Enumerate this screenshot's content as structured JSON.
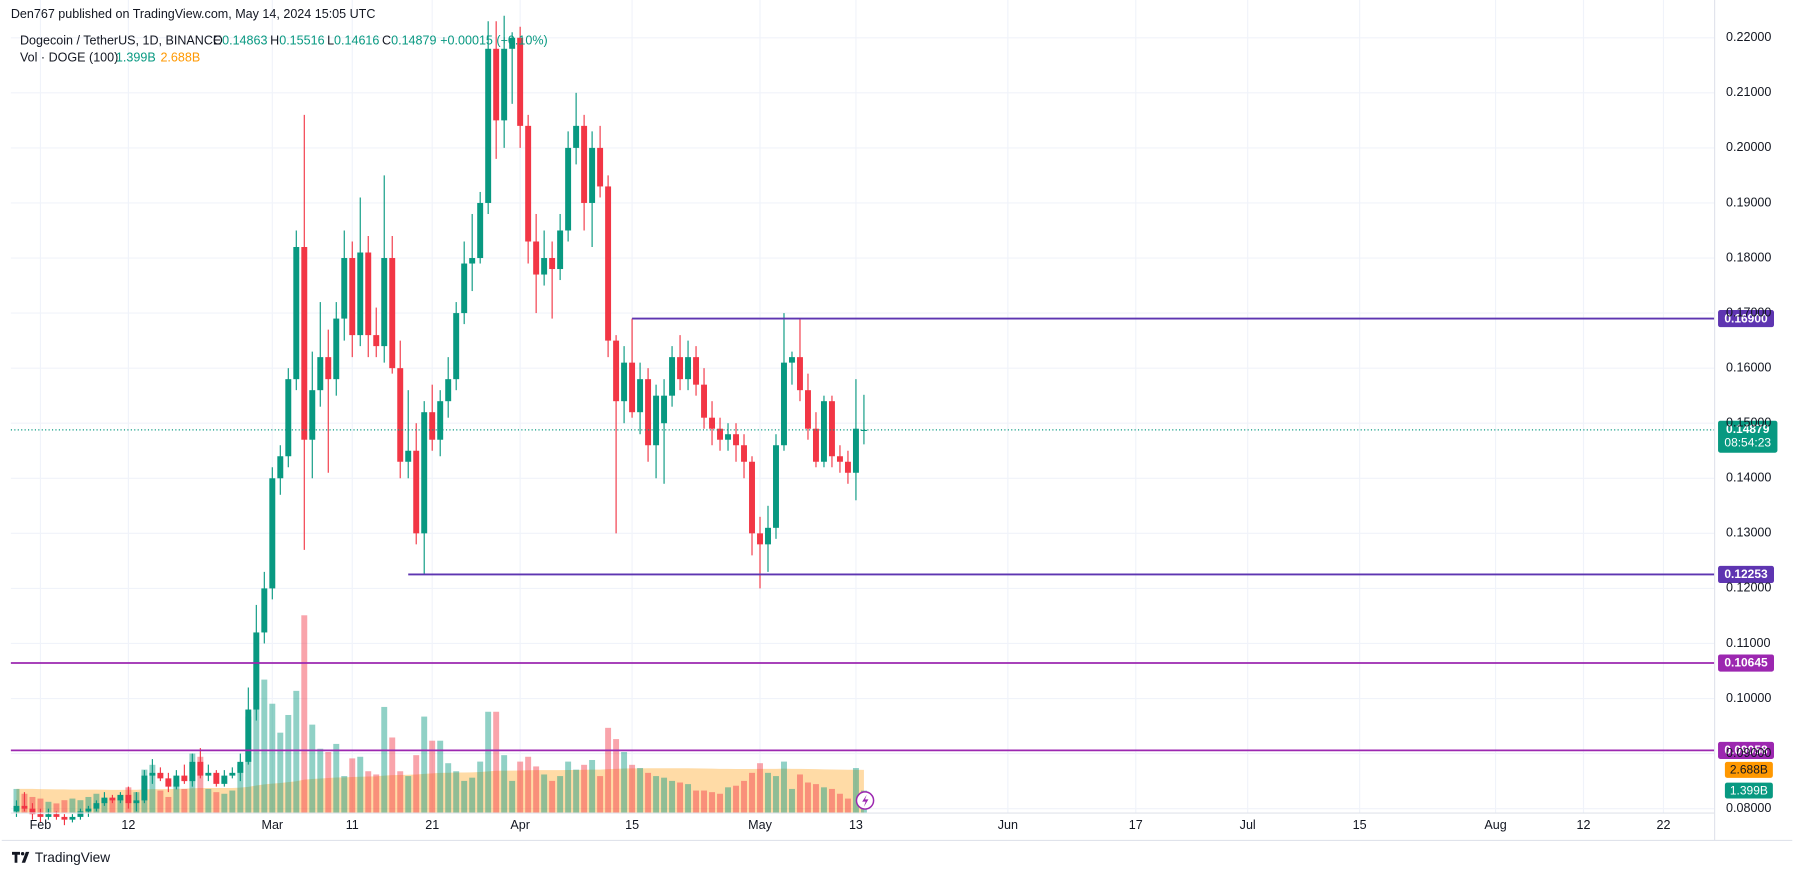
{
  "header": {
    "published": "Den767 published on TradingView.com, May 14, 2024 15:05 UTC",
    "symbol": "Dogecoin / TetherUS, 1D, BINANCE",
    "o": "O",
    "h": "H",
    "l": "L",
    "c": "C",
    "change": "+0.00015 (+0.10%)",
    "vol_title": "Vol · DOGE (100)",
    "countdown": "08:54:23",
    "footer": "TradingView"
  },
  "chart_data": {
    "type": "candlestick",
    "x": [
      29,
      30,
      31,
      32,
      33,
      34,
      35,
      36,
      37,
      38,
      39,
      40,
      41,
      42,
      43,
      44,
      45,
      46,
      47,
      48,
      49,
      50,
      51,
      52,
      53,
      54,
      55,
      56,
      57,
      58,
      59,
      60,
      61,
      62,
      63,
      64,
      65,
      66,
      67,
      68,
      69,
      70,
      71,
      72,
      73,
      74,
      75,
      76,
      77,
      78,
      79,
      80,
      81,
      82,
      83,
      84,
      85,
      86,
      87,
      88,
      89,
      90,
      91,
      92,
      93,
      94,
      95,
      96,
      97,
      98,
      99,
      100,
      101,
      102,
      103,
      104,
      105,
      106,
      107,
      108,
      109,
      110,
      111,
      112,
      113,
      114,
      115,
      116,
      117,
      118,
      119,
      120,
      121,
      122,
      123,
      124,
      125,
      126,
      127,
      128,
      129,
      130,
      131,
      132,
      133,
      134,
      135
    ],
    "ohlc": [
      [
        0.0795,
        0.0815,
        0.0785,
        0.0805
      ],
      [
        0.0805,
        0.083,
        0.0795,
        0.08
      ],
      [
        0.08,
        0.081,
        0.078,
        0.079
      ],
      [
        0.079,
        0.08,
        0.0775,
        0.0785
      ],
      [
        0.0785,
        0.08,
        0.078,
        0.079
      ],
      [
        0.079,
        0.0795,
        0.078,
        0.0785
      ],
      [
        0.0785,
        0.079,
        0.077,
        0.078
      ],
      [
        0.078,
        0.079,
        0.0775,
        0.0785
      ],
      [
        0.0785,
        0.08,
        0.078,
        0.0795
      ],
      [
        0.0795,
        0.0805,
        0.0785,
        0.08
      ],
      [
        0.08,
        0.0815,
        0.0795,
        0.081
      ],
      [
        0.081,
        0.083,
        0.0805,
        0.082
      ],
      [
        0.082,
        0.0825,
        0.081,
        0.0815
      ],
      [
        0.0815,
        0.083,
        0.081,
        0.0825
      ],
      [
        0.0825,
        0.084,
        0.08,
        0.081
      ],
      [
        0.081,
        0.083,
        0.0795,
        0.0815
      ],
      [
        0.0815,
        0.087,
        0.081,
        0.086
      ],
      [
        0.086,
        0.089,
        0.0845,
        0.0865
      ],
      [
        0.0865,
        0.0875,
        0.085,
        0.0855
      ],
      [
        0.0855,
        0.0865,
        0.083,
        0.084
      ],
      [
        0.084,
        0.087,
        0.0835,
        0.086
      ],
      [
        0.086,
        0.088,
        0.0845,
        0.085
      ],
      [
        0.085,
        0.09,
        0.084,
        0.0885
      ],
      [
        0.0885,
        0.091,
        0.0855,
        0.086
      ],
      [
        0.086,
        0.088,
        0.085,
        0.0865
      ],
      [
        0.0865,
        0.087,
        0.084,
        0.0845
      ],
      [
        0.0845,
        0.087,
        0.084,
        0.086
      ],
      [
        0.086,
        0.0875,
        0.0855,
        0.0865
      ],
      [
        0.0865,
        0.09,
        0.085,
        0.0885
      ],
      [
        0.0885,
        0.102,
        0.088,
        0.098
      ],
      [
        0.098,
        0.117,
        0.096,
        0.112
      ],
      [
        0.112,
        0.123,
        0.11,
        0.12
      ],
      [
        0.12,
        0.142,
        0.118,
        0.14
      ],
      [
        0.14,
        0.146,
        0.137,
        0.144
      ],
      [
        0.144,
        0.16,
        0.142,
        0.158
      ],
      [
        0.158,
        0.185,
        0.156,
        0.182
      ],
      [
        0.182,
        0.206,
        0.127,
        0.147
      ],
      [
        0.147,
        0.163,
        0.14,
        0.156
      ],
      [
        0.156,
        0.172,
        0.153,
        0.162
      ],
      [
        0.162,
        0.167,
        0.141,
        0.158
      ],
      [
        0.158,
        0.172,
        0.155,
        0.169
      ],
      [
        0.169,
        0.185,
        0.165,
        0.18
      ],
      [
        0.18,
        0.183,
        0.162,
        0.166
      ],
      [
        0.166,
        0.191,
        0.164,
        0.181
      ],
      [
        0.181,
        0.184,
        0.162,
        0.166
      ],
      [
        0.166,
        0.171,
        0.162,
        0.164
      ],
      [
        0.164,
        0.195,
        0.161,
        0.18
      ],
      [
        0.18,
        0.184,
        0.159,
        0.16
      ],
      [
        0.16,
        0.165,
        0.14,
        0.143
      ],
      [
        0.143,
        0.156,
        0.14,
        0.145
      ],
      [
        0.145,
        0.15,
        0.128,
        0.13
      ],
      [
        0.13,
        0.154,
        0.1225,
        0.152
      ],
      [
        0.152,
        0.157,
        0.145,
        0.147
      ],
      [
        0.147,
        0.156,
        0.144,
        0.154
      ],
      [
        0.154,
        0.162,
        0.151,
        0.158
      ],
      [
        0.158,
        0.172,
        0.156,
        0.17
      ],
      [
        0.17,
        0.183,
        0.168,
        0.179
      ],
      [
        0.179,
        0.188,
        0.174,
        0.18
      ],
      [
        0.18,
        0.192,
        0.179,
        0.19
      ],
      [
        0.19,
        0.223,
        0.188,
        0.218
      ],
      [
        0.218,
        0.223,
        0.198,
        0.205
      ],
      [
        0.205,
        0.224,
        0.2,
        0.218
      ],
      [
        0.218,
        0.221,
        0.208,
        0.22
      ],
      [
        0.22,
        0.222,
        0.2,
        0.204
      ],
      [
        0.204,
        0.206,
        0.179,
        0.183
      ],
      [
        0.183,
        0.188,
        0.17,
        0.177
      ],
      [
        0.177,
        0.185,
        0.175,
        0.18
      ],
      [
        0.18,
        0.183,
        0.169,
        0.178
      ],
      [
        0.178,
        0.188,
        0.176,
        0.185
      ],
      [
        0.185,
        0.203,
        0.183,
        0.2
      ],
      [
        0.2,
        0.21,
        0.197,
        0.204
      ],
      [
        0.204,
        0.206,
        0.185,
        0.19
      ],
      [
        0.19,
        0.203,
        0.182,
        0.2
      ],
      [
        0.2,
        0.204,
        0.191,
        0.193
      ],
      [
        0.193,
        0.195,
        0.162,
        0.165
      ],
      [
        0.165,
        0.166,
        0.13,
        0.154
      ],
      [
        0.154,
        0.164,
        0.15,
        0.161
      ],
      [
        0.161,
        0.169,
        0.151,
        0.152
      ],
      [
        0.152,
        0.161,
        0.148,
        0.158
      ],
      [
        0.158,
        0.16,
        0.143,
        0.146
      ],
      [
        0.146,
        0.157,
        0.14,
        0.155
      ],
      [
        0.15,
        0.158,
        0.139,
        0.155
      ],
      [
        0.155,
        0.164,
        0.153,
        0.162
      ],
      [
        0.162,
        0.166,
        0.156,
        0.158
      ],
      [
        0.158,
        0.165,
        0.156,
        0.162
      ],
      [
        0.162,
        0.164,
        0.155,
        0.157
      ],
      [
        0.157,
        0.16,
        0.149,
        0.151
      ],
      [
        0.151,
        0.154,
        0.146,
        0.149
      ],
      [
        0.149,
        0.151,
        0.145,
        0.147
      ],
      [
        0.147,
        0.15,
        0.145,
        0.148
      ],
      [
        0.148,
        0.15,
        0.143,
        0.146
      ],
      [
        0.146,
        0.148,
        0.14,
        0.143
      ],
      [
        0.143,
        0.144,
        0.126,
        0.13
      ],
      [
        0.13,
        0.133,
        0.12,
        0.128
      ],
      [
        0.128,
        0.135,
        0.123,
        0.131
      ],
      [
        0.131,
        0.148,
        0.129,
        0.146
      ],
      [
        0.146,
        0.17,
        0.145,
        0.161
      ],
      [
        0.161,
        0.163,
        0.157,
        0.162
      ],
      [
        0.162,
        0.169,
        0.154,
        0.156
      ],
      [
        0.156,
        0.159,
        0.147,
        0.149
      ],
      [
        0.149,
        0.152,
        0.142,
        0.143
      ],
      [
        0.143,
        0.155,
        0.142,
        0.154
      ],
      [
        0.154,
        0.155,
        0.142,
        0.144
      ],
      [
        0.144,
        0.146,
        0.141,
        0.143
      ],
      [
        0.143,
        0.145,
        0.139,
        0.141
      ],
      [
        0.141,
        0.158,
        0.136,
        0.149
      ],
      [
        0.14863,
        0.15516,
        0.14616,
        0.14879
      ]
    ],
    "volume": [
      1.5,
      1.2,
      1.0,
      0.9,
      0.7,
      0.6,
      0.8,
      0.9,
      0.8,
      1.0,
      1.2,
      0.9,
      0.8,
      0.9,
      1.6,
      1.3,
      2.7,
      3.0,
      1.4,
      1.0,
      1.8,
      1.5,
      3.7,
      3.5,
      1.5,
      1.3,
      1.2,
      1.4,
      3.0,
      6.0,
      9.5,
      8.3,
      6.8,
      5.0,
      6.1,
      7.6,
      12.3,
      5.5,
      4.0,
      3.8,
      4.3,
      2.3,
      3.4,
      3.5,
      2.6,
      2.4,
      6.6,
      4.7,
      2.6,
      2.3,
      3.6,
      6.0,
      4.5,
      4.5,
      3.1,
      2.6,
      2.0,
      2.2,
      3.2,
      6.3,
      6.3,
      3.6,
      2.0,
      3.2,
      3.5,
      2.9,
      2.4,
      2.0,
      2.3,
      3.2,
      2.7,
      3.0,
      3.3,
      2.3,
      5.3,
      4.6,
      3.8,
      3.0,
      2.8,
      2.5,
      2.3,
      2.2,
      2.0,
      1.9,
      1.8,
      1.4,
      1.4,
      1.3,
      1.2,
      1.6,
      1.7,
      2.0,
      2.5,
      3.1,
      2.5,
      2.3,
      3.2,
      1.5,
      2.4,
      1.9,
      1.8,
      1.6,
      1.5,
      1.2,
      0.9,
      2.8,
      1.399
    ],
    "volume_ma": [
      1.5,
      1.5,
      1.5,
      1.49,
      1.48,
      1.47,
      1.47,
      1.46,
      1.46,
      1.46,
      1.46,
      1.45,
      1.44,
      1.44,
      1.45,
      1.45,
      1.47,
      1.49,
      1.49,
      1.49,
      1.5,
      1.51,
      1.54,
      1.56,
      1.56,
      1.56,
      1.56,
      1.56,
      1.58,
      1.63,
      1.71,
      1.78,
      1.83,
      1.87,
      1.92,
      1.98,
      2.08,
      2.12,
      2.15,
      2.18,
      2.21,
      2.22,
      2.24,
      2.26,
      2.27,
      2.28,
      2.33,
      2.36,
      2.37,
      2.38,
      2.4,
      2.44,
      2.47,
      2.5,
      2.51,
      2.52,
      2.52,
      2.53,
      2.55,
      2.59,
      2.63,
      2.64,
      2.64,
      2.65,
      2.66,
      2.67,
      2.67,
      2.67,
      2.67,
      2.68,
      2.68,
      2.69,
      2.7,
      2.7,
      2.73,
      2.75,
      2.77,
      2.78,
      2.78,
      2.79,
      2.79,
      2.79,
      2.79,
      2.79,
      2.79,
      2.78,
      2.77,
      2.76,
      2.75,
      2.75,
      2.74,
      2.74,
      2.74,
      2.75,
      2.75,
      2.75,
      2.76,
      2.75,
      2.75,
      2.74,
      2.73,
      2.72,
      2.71,
      2.7,
      2.69,
      2.69,
      2.688
    ],
    "volume_label": "1.399B",
    "volume_ma_label": "2.688B",
    "colors": {
      "up": "#089981",
      "down": "#f23645",
      "ma": "#ff9800"
    },
    "xlim": [
      28.3,
      241.4
    ],
    "xticks": [
      {
        "value": 32,
        "label": "Feb"
      },
      {
        "value": 43,
        "label": "12"
      },
      {
        "value": 61,
        "label": "Mar"
      },
      {
        "value": 71,
        "label": "11"
      },
      {
        "value": 81,
        "label": "21"
      },
      {
        "value": 92,
        "label": "Apr"
      },
      {
        "value": 106,
        "label": "15"
      },
      {
        "value": 122,
        "label": "May"
      },
      {
        "value": 134,
        "label": "13"
      },
      {
        "value": 153,
        "label": "Jun"
      },
      {
        "value": 169,
        "label": "17"
      },
      {
        "value": 183,
        "label": "Jul"
      },
      {
        "value": 197,
        "label": "15"
      },
      {
        "value": 214,
        "label": "Aug"
      },
      {
        "value": 225,
        "label": "12"
      },
      {
        "value": 235,
        "label": "22"
      }
    ],
    "ylim": [
      0.0792,
      0.2252
    ],
    "yticks": [
      {
        "value": 0.08,
        "label": "0.08000"
      },
      {
        "value": 0.09,
        "label": "0.09000"
      },
      {
        "value": 0.1,
        "label": "0.10000"
      },
      {
        "value": 0.11,
        "label": "0.11000"
      },
      {
        "value": 0.12,
        "label": "0.12000"
      },
      {
        "value": 0.13,
        "label": "0.13000"
      },
      {
        "value": 0.14,
        "label": "0.14000"
      },
      {
        "value": 0.15,
        "label": "0.15000"
      },
      {
        "value": 0.16,
        "label": "0.16000"
      },
      {
        "value": 0.17,
        "label": "0.17000"
      },
      {
        "value": 0.18,
        "label": "0.18000"
      },
      {
        "value": 0.19,
        "label": "0.19000"
      },
      {
        "value": 0.2,
        "label": "0.20000"
      },
      {
        "value": 0.21,
        "label": "0.21000"
      },
      {
        "value": 0.22,
        "label": "0.22000"
      }
    ],
    "y2lim": [
      0,
      50
    ],
    "levels": [
      {
        "value": 0.169,
        "label": "0.16900",
        "x0": 106,
        "color": "#5e35b1"
      },
      {
        "value": 0.12253,
        "label": "0.12253",
        "x0": 78,
        "color": "#5e35b1"
      },
      {
        "value": 0.10645,
        "label": "0.10645",
        "color": "#9c27b0"
      },
      {
        "value": 0.09058,
        "label": "0.09058",
        "color": "#9c27b0"
      }
    ],
    "grid": true,
    "last_price_line": true
  }
}
